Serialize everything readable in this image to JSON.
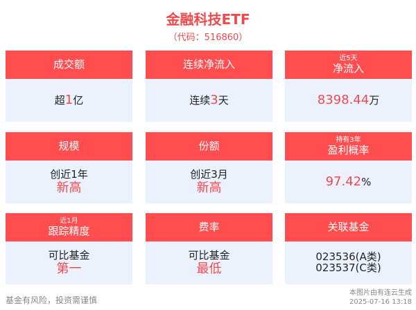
{
  "title": "金融科技ETF",
  "code": "（代码：516860）",
  "cards": [
    {
      "label": "成交额",
      "body_pre": "超",
      "body_hl": "1",
      "body_post": "亿"
    },
    {
      "label": "连续净流入",
      "body_pre": "连续",
      "body_hl": "3",
      "body_post": "天"
    },
    {
      "label_small": "近5天",
      "label": "净流入",
      "body_hl": "8398.44",
      "body_post": "万"
    },
    {
      "label": "规模",
      "line1": "创近1年",
      "line2": "新高"
    },
    {
      "label": "份额",
      "line1": "创近3月",
      "line2": "新高"
    },
    {
      "label_small": "持有3年",
      "label": "盈利概率",
      "body_hl": "97.42",
      "body_post": "%"
    },
    {
      "label_small": "近1月",
      "label": "跟踪精度",
      "line1": "可比基金",
      "line2": "第一"
    },
    {
      "label": "费率",
      "line1": "可比基金",
      "line2": "最低"
    },
    {
      "label": "关联基金",
      "line1": "023536(A类)",
      "line2": "023537(C类)"
    }
  ],
  "footer": {
    "disclaimer": "基金有风险，投资需谨慎",
    "source": "本图片由有连云生成",
    "timestamp": "2025-07-16 13:18"
  },
  "colors": {
    "accent": "#ff4d50",
    "card_bg": "#ebf2fe"
  }
}
